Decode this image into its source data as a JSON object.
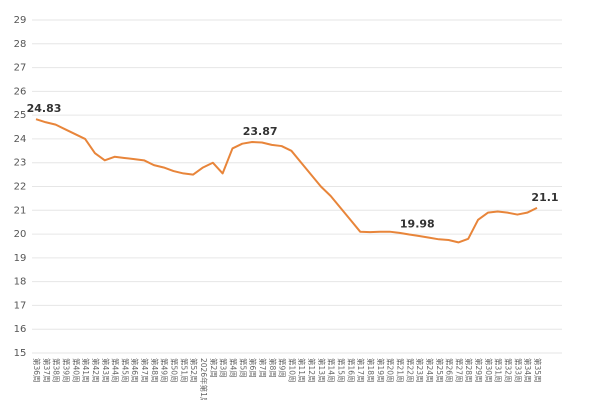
{
  "chart_data": {
    "type": "line",
    "categories": [
      "第36周",
      "第37周",
      "第38周",
      "第39周",
      "第40周",
      "第41周",
      "第42周",
      "第43周",
      "第44周",
      "第45周",
      "第46周",
      "第47周",
      "第48周",
      "第49周",
      "第50周",
      "第51周",
      "第52周",
      "2026年第1周",
      "第2周",
      "第3周",
      "第4周",
      "第5周",
      "第6周",
      "第7周",
      "第8周",
      "第9周",
      "第10周",
      "第11周",
      "第12周",
      "第13周",
      "第14周",
      "第15周",
      "第16周",
      "第17周",
      "第18周",
      "第19周",
      "第20周",
      "第21周",
      "第22周",
      "第23周",
      "第24周",
      "第25周",
      "第26周",
      "第27周",
      "第28周",
      "第29周",
      "第30周",
      "第31周",
      "第32周",
      "第33周",
      "第34周",
      "第35周"
    ],
    "values": [
      24.83,
      24.7,
      24.6,
      24.4,
      24.2,
      24.0,
      23.4,
      23.1,
      23.25,
      23.2,
      23.15,
      23.1,
      22.9,
      22.8,
      22.65,
      22.55,
      22.5,
      22.8,
      23.0,
      22.55,
      23.6,
      23.8,
      23.87,
      23.85,
      23.75,
      23.7,
      23.5,
      23.0,
      22.5,
      22.0,
      21.6,
      21.1,
      20.6,
      20.1,
      20.08,
      20.1,
      20.1,
      20.05,
      19.98,
      19.92,
      19.85,
      19.78,
      19.75,
      19.65,
      19.8,
      20.6,
      20.9,
      20.95,
      20.9,
      20.82,
      20.9,
      21.1
    ],
    "value_labels": [
      "24.83",
      null,
      null,
      null,
      null,
      null,
      null,
      null,
      null,
      null,
      null,
      null,
      null,
      null,
      null,
      null,
      null,
      null,
      null,
      null,
      null,
      null,
      "23.87",
      null,
      null,
      null,
      null,
      null,
      null,
      null,
      null,
      null,
      null,
      null,
      null,
      null,
      null,
      null,
      "19.98",
      null,
      null,
      null,
      null,
      null,
      null,
      null,
      null,
      null,
      null,
      null,
      null,
      "21.1"
    ],
    "color": "#e8853a",
    "ylim": [
      15,
      29
    ],
    "yticks": [
      15,
      16,
      17,
      18,
      19,
      20,
      21,
      22,
      23,
      24,
      25,
      26,
      27,
      28,
      29
    ],
    "grid": true
  }
}
